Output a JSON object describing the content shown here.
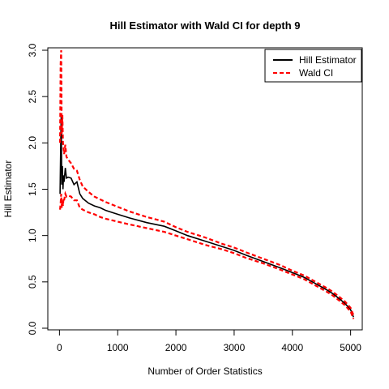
{
  "chart_data": {
    "type": "line",
    "title": "Hill Estimator with Wald CI for depth 9",
    "xlabel": "Number of Order Statistics",
    "ylabel": "Hill Estimator",
    "xlim": [
      -200,
      5200
    ],
    "ylim": [
      0,
      3.0
    ],
    "x_ticks": [
      0,
      1000,
      2000,
      3000,
      4000,
      5000
    ],
    "x_tick_labels": [
      "0",
      "1000",
      "2000",
      "3000",
      "4000",
      "5000"
    ],
    "y_ticks": [
      0.0,
      0.5,
      1.0,
      1.5,
      2.0,
      2.5,
      3.0
    ],
    "y_tick_labels": [
      "0.0",
      "0.5",
      "1.0",
      "1.5",
      "2.0",
      "2.5",
      "3.0"
    ],
    "legend_position": "top-right",
    "series": [
      {
        "name": "Hill Estimator",
        "color": "#000000",
        "style": "solid",
        "x": [
          10,
          20,
          30,
          40,
          50,
          60,
          70,
          80,
          100,
          120,
          150,
          200,
          250,
          300,
          350,
          400,
          500,
          600,
          700,
          800,
          1000,
          1200,
          1500,
          1800,
          2000,
          2200,
          2500,
          2800,
          3000,
          3200,
          3500,
          3800,
          4000,
          4200,
          4400,
          4600,
          4700,
          4800,
          4900,
          5000,
          5050
        ],
        "y": [
          1.45,
          1.9,
          2.3,
          1.55,
          1.75,
          1.5,
          1.65,
          1.58,
          1.73,
          1.62,
          1.63,
          1.62,
          1.55,
          1.58,
          1.45,
          1.4,
          1.35,
          1.32,
          1.3,
          1.27,
          1.23,
          1.19,
          1.14,
          1.1,
          1.05,
          1.0,
          0.94,
          0.88,
          0.84,
          0.79,
          0.72,
          0.65,
          0.6,
          0.55,
          0.48,
          0.41,
          0.37,
          0.32,
          0.27,
          0.2,
          0.12
        ]
      },
      {
        "name": "Wald CI",
        "color": "#ff0000",
        "style": "dashed",
        "x": [
          10,
          20,
          30,
          40,
          50,
          60,
          70,
          80,
          100,
          120,
          150,
          200,
          250,
          300,
          350,
          400,
          500,
          600,
          700,
          800,
          1000,
          1200,
          1500,
          1800,
          2000,
          2200,
          2500,
          2800,
          3000,
          3200,
          3500,
          3800,
          4000,
          4200,
          4400,
          4600,
          4700,
          4800,
          4900,
          5000,
          5050
        ],
        "y": [
          2.0,
          2.85,
          3.0,
          2.1,
          2.3,
          2.0,
          1.95,
          1.88,
          1.98,
          1.85,
          1.82,
          1.78,
          1.72,
          1.7,
          1.6,
          1.53,
          1.47,
          1.42,
          1.39,
          1.36,
          1.31,
          1.26,
          1.2,
          1.15,
          1.09,
          1.04,
          0.98,
          0.91,
          0.87,
          0.82,
          0.75,
          0.68,
          0.62,
          0.57,
          0.5,
          0.43,
          0.39,
          0.34,
          0.29,
          0.22,
          0.14
        ]
      },
      {
        "name": "",
        "color": "#ff0000",
        "style": "dashed",
        "x": [
          10,
          20,
          30,
          40,
          50,
          60,
          70,
          80,
          100,
          120,
          150,
          200,
          250,
          300,
          350,
          400,
          500,
          600,
          700,
          800,
          1000,
          1200,
          1500,
          1800,
          2000,
          2200,
          2500,
          2800,
          3000,
          3200,
          3500,
          3800,
          4000,
          4200,
          4400,
          4600,
          4700,
          4800,
          4900,
          5000,
          5050
        ],
        "y": [
          1.28,
          1.35,
          1.45,
          1.3,
          1.38,
          1.32,
          1.4,
          1.38,
          1.45,
          1.42,
          1.43,
          1.42,
          1.38,
          1.38,
          1.3,
          1.28,
          1.25,
          1.23,
          1.2,
          1.18,
          1.15,
          1.12,
          1.08,
          1.04,
          1.0,
          0.96,
          0.9,
          0.85,
          0.81,
          0.76,
          0.7,
          0.63,
          0.58,
          0.53,
          0.46,
          0.39,
          0.35,
          0.3,
          0.25,
          0.18,
          0.1
        ]
      }
    ]
  }
}
